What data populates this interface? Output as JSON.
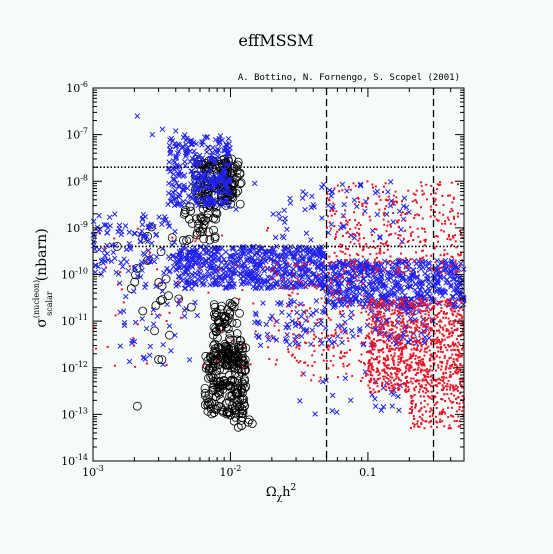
{
  "chart_data": {
    "type": "scatter",
    "title": "effMSSM",
    "credit": "A. Bottino, N. Fornengo, S. Scopel (2001)",
    "xlabel": {
      "main": "Ω",
      "sub": "χ",
      "rest": "h",
      "sup": "2"
    },
    "ylabel": {
      "main": "σ",
      "sup": "(nucleon)",
      "sub": "scalar",
      "unit": "(nbarn)"
    },
    "xscale": "log",
    "yscale": "log",
    "xlim": [
      0.001,
      0.5
    ],
    "ylim": [
      1e-14,
      1e-06
    ],
    "x_ticks": [
      {
        "value": 0.001,
        "label": "10",
        "exp": "-3"
      },
      {
        "value": 0.01,
        "label": "10",
        "exp": "-2"
      },
      {
        "value": 0.1,
        "label": "0.1",
        "exp": ""
      }
    ],
    "y_ticks": [
      {
        "value": 1e-06,
        "label": "10",
        "exp": "-6"
      },
      {
        "value": 1e-07,
        "label": "10",
        "exp": "-7"
      },
      {
        "value": 1e-08,
        "label": "10",
        "exp": "-8"
      },
      {
        "value": 1e-09,
        "label": "10",
        "exp": "-9"
      },
      {
        "value": 1e-10,
        "label": "10",
        "exp": "-10"
      },
      {
        "value": 1e-11,
        "label": "10",
        "exp": "-11"
      },
      {
        "value": 1e-12,
        "label": "10",
        "exp": "-12"
      },
      {
        "value": 1e-13,
        "label": "10",
        "exp": "-13"
      },
      {
        "value": 1e-14,
        "label": "10",
        "exp": "-14"
      }
    ],
    "reference_lines": [
      {
        "orientation": "vertical",
        "value": 0.05,
        "style": "dashed"
      },
      {
        "orientation": "vertical",
        "value": 0.3,
        "style": "dashed"
      },
      {
        "orientation": "horizontal",
        "value": 2e-08,
        "style": "dotted"
      },
      {
        "orientation": "horizontal",
        "value": 4e-10,
        "style": "dotted"
      }
    ],
    "series": [
      {
        "marker": "circle",
        "color": "#000000",
        "clusters": [
          {
            "x": [
              0.0055,
              0.012
            ],
            "y": [
              3e-09,
              3e-08
            ],
            "n": 160
          },
          {
            "x": [
              0.0065,
              0.013
            ],
            "y": [
              1e-13,
              3e-12
            ],
            "n": 190
          },
          {
            "x": [
              0.0075,
              0.012
            ],
            "y": [
              1e-12,
              3e-11
            ],
            "n": 90
          },
          {
            "x": [
              0.0045,
              0.008
            ],
            "y": [
              5e-10,
              3e-09
            ],
            "n": 40
          },
          {
            "x": [
              0.002,
              0.004
            ],
            "y": [
              1e-12,
              2e-09
            ],
            "n": 16
          },
          {
            "x": [
              0.009,
              0.015
            ],
            "y": [
              5e-14,
              1e-13
            ],
            "n": 10
          }
        ],
        "points": [
          {
            "x": 0.0015,
            "y": 4e-10
          },
          {
            "x": 0.0019,
            "y": 5e-11
          },
          {
            "x": 0.0021,
            "y": 1.5e-13
          },
          {
            "x": 0.0023,
            "y": 6e-10
          },
          {
            "x": 0.0025,
            "y": 2e-10
          },
          {
            "x": 0.003,
            "y": 1.5e-12
          },
          {
            "x": 0.0034,
            "y": 8e-11
          },
          {
            "x": 0.0036,
            "y": 5e-12
          },
          {
            "x": 0.0042,
            "y": 3e-11
          },
          {
            "x": 0.0052,
            "y": 2e-11
          }
        ]
      },
      {
        "marker": "x",
        "color": "#2222ee",
        "clusters": [
          {
            "x": [
              0.0035,
              0.01
            ],
            "y": [
              3e-09,
              1e-07
            ],
            "n": 280
          },
          {
            "x": [
              0.004,
              0.05
            ],
            "y": [
              5e-11,
              4e-10
            ],
            "n": 600
          },
          {
            "x": [
              0.05,
              0.5
            ],
            "y": [
              2e-11,
              2e-10
            ],
            "n": 520
          },
          {
            "x": [
              0.001,
              0.004
            ],
            "y": [
              1e-10,
              2e-09
            ],
            "n": 120
          },
          {
            "x": [
              0.015,
              0.3
            ],
            "y": [
              3e-12,
              3e-11
            ],
            "n": 160
          },
          {
            "x": [
              0.0015,
              0.006
            ],
            "y": [
              1e-12,
              1e-10
            ],
            "n": 45
          },
          {
            "x": [
              0.02,
              0.2
            ],
            "y": [
              5e-10,
              1e-08
            ],
            "n": 70
          },
          {
            "x": [
              0.03,
              0.2
            ],
            "y": [
              1e-13,
              1e-12
            ],
            "n": 25
          }
        ],
        "points": [
          {
            "x": 0.0021,
            "y": 2.5e-07
          },
          {
            "x": 0.0027,
            "y": 1e-07
          },
          {
            "x": 0.0032,
            "y": 1.3e-07
          },
          {
            "x": 0.011,
            "y": 2.5e-09
          },
          {
            "x": 0.015,
            "y": 9e-09
          },
          {
            "x": 0.004,
            "y": 1.2e-07
          },
          {
            "x": 0.055,
            "y": 6e-09
          },
          {
            "x": 0.075,
            "y": 2e-13
          }
        ]
      },
      {
        "marker": "dot",
        "color": "#e8142a",
        "clusters": [
          {
            "x": [
              0.1,
              0.5
            ],
            "y": [
              3e-13,
              3e-11
            ],
            "n": 1000
          },
          {
            "x": [
              0.05,
              0.5
            ],
            "y": [
              1e-10,
              1e-08
            ],
            "n": 380
          },
          {
            "x": [
              0.02,
              0.1
            ],
            "y": [
              1e-12,
              2e-10
            ],
            "n": 150
          },
          {
            "x": [
              0.2,
              0.5
            ],
            "y": [
              5e-14,
              3e-13
            ],
            "n": 140
          },
          {
            "x": [
              0.03,
              0.3
            ],
            "y": [
              5e-13,
              5e-12
            ],
            "n": 120
          },
          {
            "x": [
              0.001,
              0.02
            ],
            "y": [
              1e-12,
              1e-09
            ],
            "n": 60
          }
        ],
        "points": []
      }
    ]
  }
}
